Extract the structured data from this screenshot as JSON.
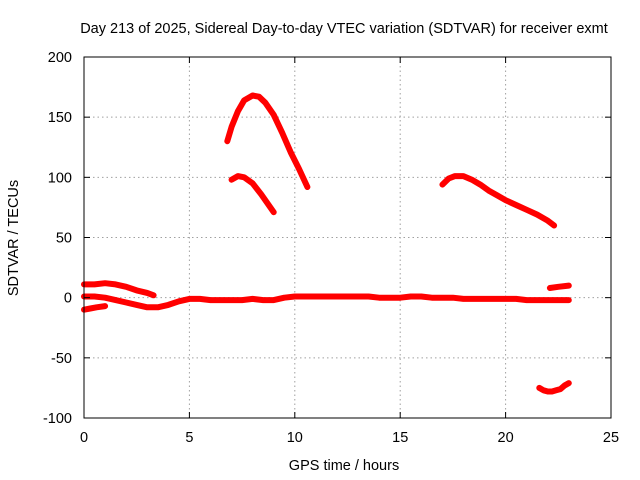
{
  "chart_data": {
    "type": "line",
    "title": "Day 213 of 2025, Sidereal Day-to-day VTEC variation (SDTVAR) for receiver exmt",
    "xlabel": "GPS time / hours",
    "ylabel": "SDTVAR / TECUs",
    "xlim": [
      0,
      25
    ],
    "ylim": [
      -100,
      200
    ],
    "xticks": [
      0,
      5,
      10,
      15,
      20,
      25
    ],
    "yticks": [
      -100,
      -50,
      0,
      50,
      100,
      150,
      200
    ],
    "grid": true,
    "legend": "none",
    "series_color": "#ff0000",
    "series": [
      {
        "name": "arc-1",
        "x": [
          0,
          0.3,
          0.6,
          1.0
        ],
        "y": [
          -10,
          -9,
          -8,
          -7
        ]
      },
      {
        "name": "arc-2",
        "x": [
          0,
          0.5,
          1.0,
          1.5,
          2.0,
          2.5,
          3.0,
          3.3
        ],
        "y": [
          11,
          11,
          12,
          11,
          9,
          6,
          4,
          2
        ]
      },
      {
        "name": "arc-3",
        "x": [
          0,
          0.5,
          1.0,
          1.5,
          2.0,
          2.5,
          3.0,
          3.5,
          4.0,
          4.5,
          5.0,
          5.5,
          6.0,
          6.5,
          7.0,
          7.5,
          8.0,
          8.5,
          9.0,
          9.5,
          10.0,
          10.5,
          11.0,
          11.5,
          12.0,
          12.5,
          13.0,
          13.5,
          14.0,
          14.5,
          15.0,
          15.5,
          16.0,
          16.5,
          17.0,
          17.5,
          18.0,
          18.5,
          19.0,
          19.5,
          20.0,
          20.5,
          21.0,
          21.5,
          22.0,
          22.5,
          23.0
        ],
        "y": [
          1,
          1,
          0,
          -2,
          -4,
          -6,
          -8,
          -8,
          -6,
          -3,
          -1,
          -1,
          -2,
          -2,
          -2,
          -2,
          -1,
          -2,
          -2,
          0,
          1,
          1,
          1,
          1,
          1,
          1,
          1,
          1,
          0,
          0,
          0,
          1,
          1,
          0,
          0,
          0,
          -1,
          -1,
          -1,
          -1,
          -1,
          -1,
          -2,
          -2,
          -2,
          -2,
          -2
        ]
      },
      {
        "name": "arc-4",
        "x": [
          6.8,
          7.0,
          7.3,
          7.6,
          8.0,
          8.3,
          8.6,
          9.0,
          9.4,
          9.8,
          10.2,
          10.6
        ],
        "y": [
          130,
          142,
          155,
          164,
          168,
          167,
          162,
          152,
          137,
          121,
          107,
          92
        ]
      },
      {
        "name": "arc-5",
        "x": [
          7.0,
          7.3,
          7.6,
          8.0,
          8.4,
          8.8,
          9.0
        ],
        "y": [
          98,
          101,
          100,
          95,
          86,
          76,
          71
        ]
      },
      {
        "name": "arc-6",
        "x": [
          17.0,
          17.3,
          17.6,
          18.0,
          18.4,
          18.8,
          19.2,
          19.6,
          20.0,
          20.5,
          21.0,
          21.5,
          22.0,
          22.3
        ],
        "y": [
          94,
          99,
          101,
          101,
          98,
          94,
          89,
          85,
          81,
          77,
          73,
          69,
          64,
          60
        ]
      },
      {
        "name": "arc-7",
        "x": [
          21.6,
          21.8,
          22.0,
          22.2,
          22.4,
          22.6,
          22.8,
          23.0
        ],
        "y": [
          -75,
          -77,
          -78,
          -78,
          -77,
          -76,
          -73,
          -71
        ]
      },
      {
        "name": "arc-8",
        "x": [
          22.1,
          22.5,
          23.0
        ],
        "y": [
          8,
          9,
          10
        ]
      }
    ]
  }
}
